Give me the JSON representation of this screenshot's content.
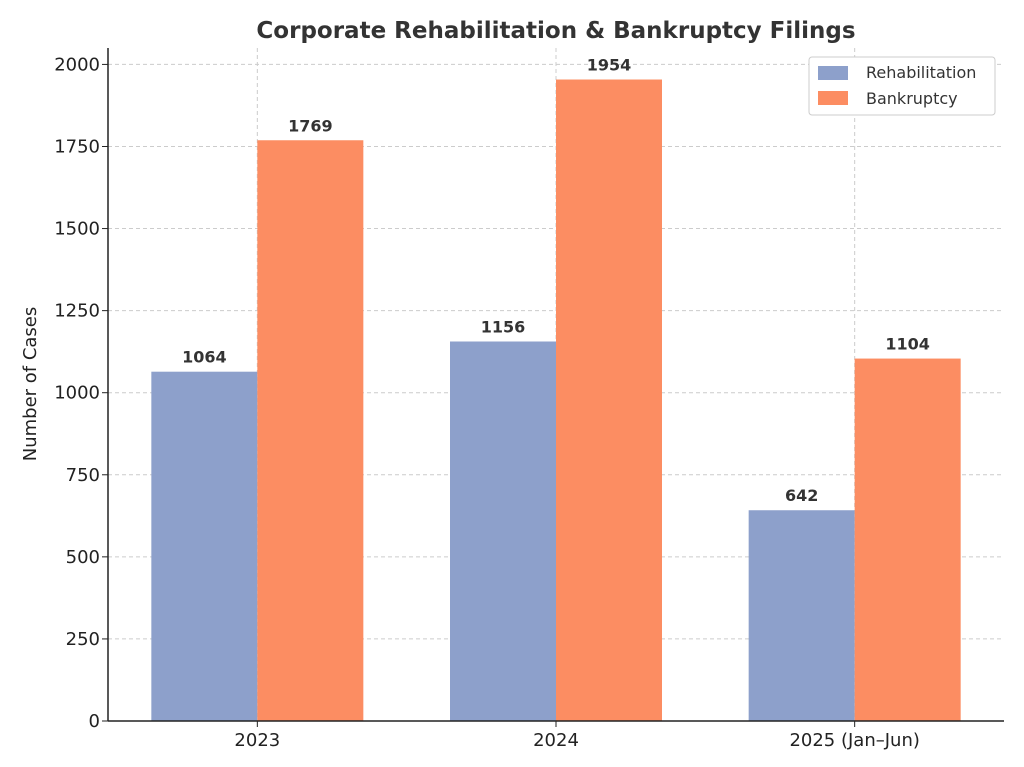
{
  "chart_data": {
    "type": "bar",
    "title": "Corporate Rehabilitation & Bankruptcy Filings",
    "xlabel": "",
    "ylabel": "Number of Cases",
    "categories": [
      "2023",
      "2024",
      "2025 (Jan–Jun)"
    ],
    "series": [
      {
        "name": "Rehabilitation",
        "values": [
          1064,
          1156,
          642
        ],
        "color": "#8da0cb"
      },
      {
        "name": "Bankruptcy",
        "values": [
          1769,
          1954,
          1104
        ],
        "color": "#fc8d62"
      }
    ],
    "ylim": [
      0,
      2050
    ],
    "yticks": [
      0,
      250,
      500,
      750,
      1000,
      1250,
      1500,
      1750,
      2000
    ],
    "grid": true,
    "legend_position": "top-right"
  }
}
